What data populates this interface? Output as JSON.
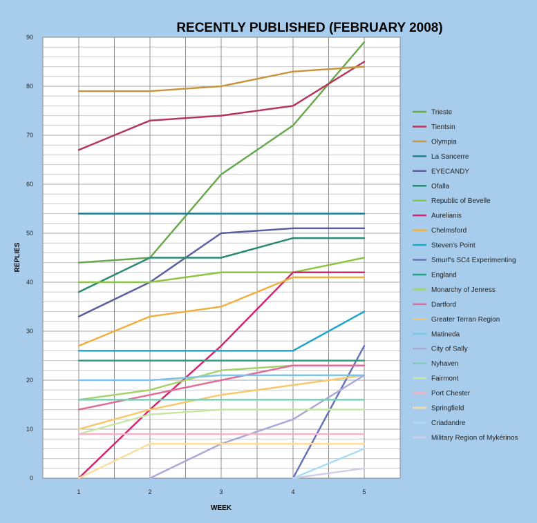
{
  "chart_data": {
    "type": "line",
    "title": "RECENTLY PUBLISHED (FEBRUARY 2008)",
    "xlabel": "WEEK",
    "ylabel": "REPLIES",
    "x": [
      1,
      2,
      3,
      4,
      5
    ],
    "ylim": [
      0,
      90
    ],
    "yticks": [
      0,
      10,
      20,
      30,
      40,
      50,
      60,
      70,
      80,
      90
    ],
    "grid": true,
    "legend_position": "right",
    "series": [
      {
        "name": "Trieste",
        "color": "#6aa84f",
        "x": [
          1,
          2,
          3,
          4,
          5
        ],
        "values": [
          44,
          45,
          62,
          72,
          89
        ]
      },
      {
        "name": "Tientsin",
        "color": "#b5355d",
        "x": [
          1,
          2,
          3,
          4,
          5
        ],
        "values": [
          67,
          73,
          74,
          76,
          85
        ]
      },
      {
        "name": "Olympia",
        "color": "#c8963e",
        "x": [
          1,
          2,
          3,
          4,
          5
        ],
        "values": [
          79,
          79,
          80,
          83,
          84
        ]
      },
      {
        "name": "La Sancerre",
        "color": "#1f7f95",
        "x": [
          1,
          2,
          3,
          4,
          5
        ],
        "values": [
          54,
          54,
          54,
          54,
          54
        ]
      },
      {
        "name": "EYECANDY",
        "color": "#5c5f9e",
        "x": [
          1,
          2,
          3,
          4,
          5
        ],
        "values": [
          33,
          40,
          50,
          51,
          51
        ]
      },
      {
        "name": "Ofalla",
        "color": "#2a8a72",
        "x": [
          1,
          2,
          3,
          4,
          5
        ],
        "values": [
          38,
          45,
          45,
          49,
          49
        ]
      },
      {
        "name": "Republic of Bevelle",
        "color": "#8cc63f",
        "x": [
          1,
          2,
          3,
          4,
          5
        ],
        "values": [
          40,
          40,
          42,
          42,
          45
        ]
      },
      {
        "name": "Aurelianis",
        "color": "#d6246e",
        "x": [
          1,
          2,
          3,
          4,
          5
        ],
        "values": [
          0,
          14,
          27,
          42,
          42
        ]
      },
      {
        "name": "Chelmsford",
        "color": "#f0b040",
        "x": [
          1,
          2,
          3,
          4,
          5
        ],
        "values": [
          27,
          33,
          35,
          41,
          41
        ]
      },
      {
        "name": "Steven's Point",
        "color": "#1fa5c9",
        "x": [
          1,
          2,
          3,
          4,
          5
        ],
        "values": [
          26,
          26,
          26,
          26,
          34
        ]
      },
      {
        "name": "Smurf's SC4 Experimenting",
        "color": "#6673b8",
        "x": [
          4,
          5
        ],
        "values": [
          0,
          27
        ]
      },
      {
        "name": "England",
        "color": "#27a083",
        "x": [
          1,
          2,
          3,
          4,
          5
        ],
        "values": [
          24,
          24,
          24,
          24,
          24
        ]
      },
      {
        "name": "Monarchy of Jenress",
        "color": "#a3d36a",
        "x": [
          1,
          2,
          3,
          4,
          5
        ],
        "values": [
          16,
          18,
          22,
          23,
          23
        ]
      },
      {
        "name": "Dartford",
        "color": "#e36b9a",
        "x": [
          1,
          2,
          3,
          4,
          5
        ],
        "values": [
          14,
          17,
          20,
          23,
          23
        ]
      },
      {
        "name": "Greater Terran Region",
        "color": "#f7c96b",
        "x": [
          1,
          2,
          3,
          4,
          5
        ],
        "values": [
          10,
          14,
          17,
          19,
          21
        ]
      },
      {
        "name": "Matineda",
        "color": "#7fc4e8",
        "x": [
          1,
          2,
          3,
          4,
          5
        ],
        "values": [
          20,
          20,
          21,
          21,
          21
        ]
      },
      {
        "name": "City of Sally",
        "color": "#a9a9d9",
        "x": [
          2,
          3,
          4,
          5
        ],
        "values": [
          0,
          7,
          12,
          21
        ]
      },
      {
        "name": "Nyhaven",
        "color": "#7fccb3",
        "x": [
          1,
          2,
          3,
          4,
          5
        ],
        "values": [
          16,
          16,
          16,
          16,
          16
        ]
      },
      {
        "name": "Fairmont",
        "color": "#c8e6a6",
        "x": [
          1,
          2,
          3,
          4,
          5
        ],
        "values": [
          9,
          13,
          14,
          14,
          14
        ]
      },
      {
        "name": "Port Chester",
        "color": "#f4b3c9",
        "x": [
          1,
          2,
          3,
          4,
          5
        ],
        "values": [
          9,
          9,
          9,
          9,
          9
        ]
      },
      {
        "name": "Springfield",
        "color": "#fbdd9e",
        "x": [
          1,
          2,
          3,
          4,
          5
        ],
        "values": [
          0,
          7,
          7,
          7,
          7
        ]
      },
      {
        "name": "Criadandre",
        "color": "#a9dcf3",
        "x": [
          4,
          5
        ],
        "values": [
          0,
          6
        ]
      },
      {
        "name": "Military Region of Mykérinos",
        "color": "#cfcfe9",
        "x": [
          4,
          5
        ],
        "values": [
          0,
          2
        ]
      }
    ]
  }
}
